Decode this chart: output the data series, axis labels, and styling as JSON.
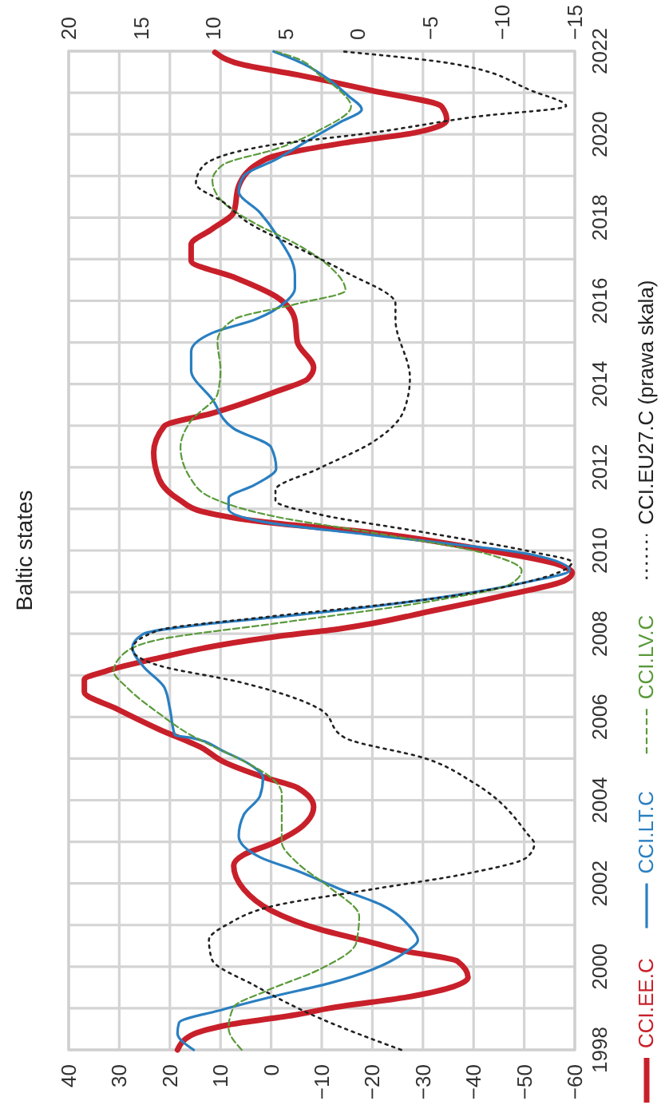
{
  "chart_data": {
    "type": "line",
    "title": "Baltic states",
    "ylim": [
      1998,
      2022
    ],
    "yticks": [
      1998,
      {
        "value": 1999,
        "label": null
      },
      2000,
      {
        "value": 2001,
        "label": null
      },
      2002,
      {
        "value": 2003,
        "label": null
      },
      2004,
      {
        "value": 2005,
        "label": null
      },
      2006,
      {
        "value": 2007,
        "label": null
      },
      2008,
      {
        "value": 2009,
        "label": null
      },
      2010,
      {
        "value": 2011,
        "label": null
      },
      2012,
      {
        "value": 2013,
        "label": null
      },
      2014,
      {
        "value": 2015,
        "label": null
      },
      2016,
      {
        "value": 2017,
        "label": null
      },
      2018,
      {
        "value": 2019,
        "label": null
      },
      2020,
      {
        "value": 2021,
        "label": null
      },
      2022
    ],
    "xlim": [
      40,
      -60
    ],
    "xticks": [
      40,
      30,
      20,
      10,
      0,
      -10,
      -20,
      -30,
      -40,
      -50,
      -60
    ],
    "x2lim": [
      20,
      -15
    ],
    "x2ticks": [
      20,
      15,
      10,
      5,
      0,
      -5,
      -10,
      -15
    ],
    "grid": true,
    "legend": "right",
    "series": [
      {
        "name": "CCI.EE.C",
        "color": "#c8202a",
        "line_style": "solid",
        "values": [
          1998.0,
          1998.35,
          1998.6,
          1998.85,
          1999.0,
          1999.3,
          1999.74,
          2000.13,
          2000.38,
          2000.58,
          2000.9,
          2001.35,
          2001.86,
          2002.43,
          2002.69,
          2002.95,
          2003.39,
          2003.84,
          2004.3,
          2004.54,
          2004.93,
          2005.26,
          2005.7,
          2006.2,
          2006.6,
          2006.9,
          2007.1,
          2007.42,
          2007.74,
          2007.93,
          2008.12,
          2008.57,
          2008.95,
          2009.27,
          2009.46,
          2009.66,
          2010.04,
          2010.43,
          2010.68,
          2010.94,
          2011.2,
          2011.71,
          2012.35,
          2012.99,
          2013.3,
          2013.82,
          2014.13,
          2014.4,
          2015.0,
          2015.55,
          2016.1,
          2016.57,
          2016.96,
          2017.35,
          2017.73,
          2018.12,
          2018.76,
          2019.4,
          2019.8,
          2020.04,
          2020.35,
          2020.67,
          2021.05,
          2021.43,
          2021.7,
          2021.97
        ],
        "x": [
          18.5,
          15.8,
          8.5,
          -5.2,
          -11.5,
          -28.4,
          -38.9,
          -36.8,
          -26.2,
          -19.9,
          -9.5,
          0,
          5.4,
          7.4,
          5.4,
          0,
          -6.3,
          -8.4,
          -5.2,
          1.1,
          9.5,
          13.7,
          22.1,
          30.6,
          36.9,
          36.9,
          32.7,
          22.1,
          9.5,
          -1,
          -13.6,
          -32.6,
          -47.3,
          -57.9,
          -59.5,
          -56.8,
          -41,
          -20,
          1.1,
          13.7,
          17.9,
          22.1,
          23.2,
          21.1,
          11.6,
          -1,
          -7.3,
          -8.4,
          -5.2,
          -4.7,
          -1,
          7.4,
          15.8,
          15.8,
          11.6,
          7.4,
          6.4,
          1.1,
          -14.7,
          -28.4,
          -34.7,
          -33.7,
          -20,
          -5.2,
          6.4,
          11.1
        ]
      },
      {
        "name": "CCI.LT.C",
        "color": "#2a7fc1",
        "line_style": "solid",
        "values": [
          1998.0,
          1998.4,
          1998.65,
          1998.97,
          1999.3,
          1999.6,
          1999.93,
          2000.32,
          2000.64,
          2000.96,
          2001.47,
          2001.86,
          2002.3,
          2002.63,
          2003.14,
          2003.65,
          2004.1,
          2004.54,
          2004.86,
          2005.18,
          2005.5,
          2005.56,
          2006.2,
          2006.71,
          2007.22,
          2007.67,
          2007.99,
          2008.25,
          2008.4,
          2008.82,
          2009.27,
          2009.52,
          2009.9,
          2010.37,
          2010.68,
          2011.0,
          2011.26,
          2011.58,
          2011.97,
          2012.48,
          2012.93,
          2013.63,
          2014.33,
          2014.78,
          2015.23,
          2015.55,
          2016.0,
          2016.3,
          2016.63,
          2017.6,
          2018.12,
          2018.63,
          2019.0,
          2019.4,
          2019.85,
          2020.29,
          2020.6,
          2020.93,
          2021.31,
          2021.7,
          2021.99
        ],
        "x": [
          15.3,
          18.5,
          18.2,
          9.5,
          -1,
          -11.5,
          -20,
          -26.2,
          -29,
          -27.4,
          -22,
          -13.7,
          -5.2,
          2.2,
          6.4,
          5.4,
          2.2,
          1.6,
          4.2,
          9.5,
          15.8,
          19,
          20,
          21.1,
          25.3,
          27.4,
          25.3,
          11.6,
          -1,
          -30.5,
          -51.6,
          -59,
          -51.6,
          -20,
          1.1,
          8.4,
          8.4,
          3.2,
          -1,
          0,
          7.4,
          11.6,
          15.8,
          15.8,
          11.6,
          3.2,
          -3.1,
          -4.7,
          -4.7,
          -1,
          2.2,
          6.4,
          5.4,
          -1,
          -7.3,
          -13.6,
          -17.9,
          -15.2,
          -11.5,
          -6.3,
          -0.5
        ]
      },
      {
        "name": "CCI.LV.C",
        "color": "#5a9a3a",
        "line_style": "dashed",
        "values": [
          1998.0,
          1998.52,
          1999.03,
          1999.41,
          1999.93,
          2000.57,
          2001.21,
          2001.91,
          2002.49,
          2003.0,
          2003.65,
          2004.16,
          2004.54,
          2004.93,
          2005.3,
          2005.56,
          2006.08,
          2006.71,
          2007.1,
          2007.48,
          2007.86,
          2008.25,
          2008.76,
          2009.2,
          2009.52,
          2009.9,
          2010.43,
          2010.81,
          2011.26,
          2011.71,
          2012.48,
          2013.12,
          2013.76,
          2014.33,
          2015.03,
          2015.55,
          2015.93,
          2016.25,
          2016.83,
          2017.35,
          2017.86,
          2018.37,
          2018.89,
          2019.27,
          2019.65,
          2020.1,
          2020.67,
          2021.05,
          2021.43,
          2021.82,
          2021.99
        ],
        "x": [
          5.8,
          8.4,
          7.4,
          1.1,
          -9.5,
          -16.8,
          -17.4,
          -11.5,
          -5.2,
          -2.1,
          -2.1,
          -2.1,
          0,
          5.3,
          11.6,
          15.8,
          22.1,
          28.5,
          31.1,
          29.5,
          22.1,
          -1,
          -30.5,
          -47.4,
          -49.5,
          -43.2,
          -20,
          -1,
          11.6,
          15.8,
          17.9,
          15.8,
          10.6,
          10,
          10.6,
          7.4,
          -5.2,
          -14.7,
          -11.5,
          -5.2,
          3.2,
          9.5,
          11.6,
          9.5,
          -1,
          -9.5,
          -15.8,
          -13.6,
          -9.5,
          -5.2,
          -1
        ]
      },
      {
        "name": "CCI.EU27.C (prawa skala)",
        "color": "#222222",
        "line_style": "dotted",
        "axis": "x2",
        "values": [
          1998.0,
          1998.77,
          1999.54,
          2000.18,
          2000.64,
          2001.02,
          2001.47,
          2001.86,
          2002.24,
          2002.63,
          2002.95,
          2003.2,
          2004.42,
          2005.0,
          2005.5,
          2006.2,
          2006.84,
          2007.24,
          2007.63,
          2008.08,
          2008.4,
          2008.82,
          2009.27,
          2009.72,
          2009.97,
          2010.43,
          2010.87,
          2011.2,
          2011.45,
          2011.97,
          2012.6,
          2013.38,
          2014.15,
          2015.55,
          2015.93,
          2016.7,
          2017.35,
          2017.86,
          2018.37,
          2018.82,
          2019.2,
          2019.72,
          2020.04,
          2020.43,
          2020.68,
          2021.05,
          2021.7,
          2021.99
        ],
        "x": [
          -3,
          2.7,
          7.1,
          10.1,
          10.3,
          9,
          5.7,
          -1,
          -7.6,
          -11.7,
          -12.2,
          -11.7,
          -8,
          -4.7,
          0.9,
          2.7,
          8.2,
          13.8,
          15.6,
          13.8,
          6.4,
          -4.7,
          -12,
          -14.8,
          -12,
          -4.7,
          2.7,
          5.7,
          5.7,
          2.7,
          -1,
          -3.2,
          -3.6,
          -2.6,
          -2.6,
          0.9,
          4.6,
          7.5,
          9.3,
          11.2,
          10.8,
          6.4,
          -1,
          -8.3,
          -14.4,
          -12,
          -6.5,
          1
        ]
      }
    ]
  }
}
